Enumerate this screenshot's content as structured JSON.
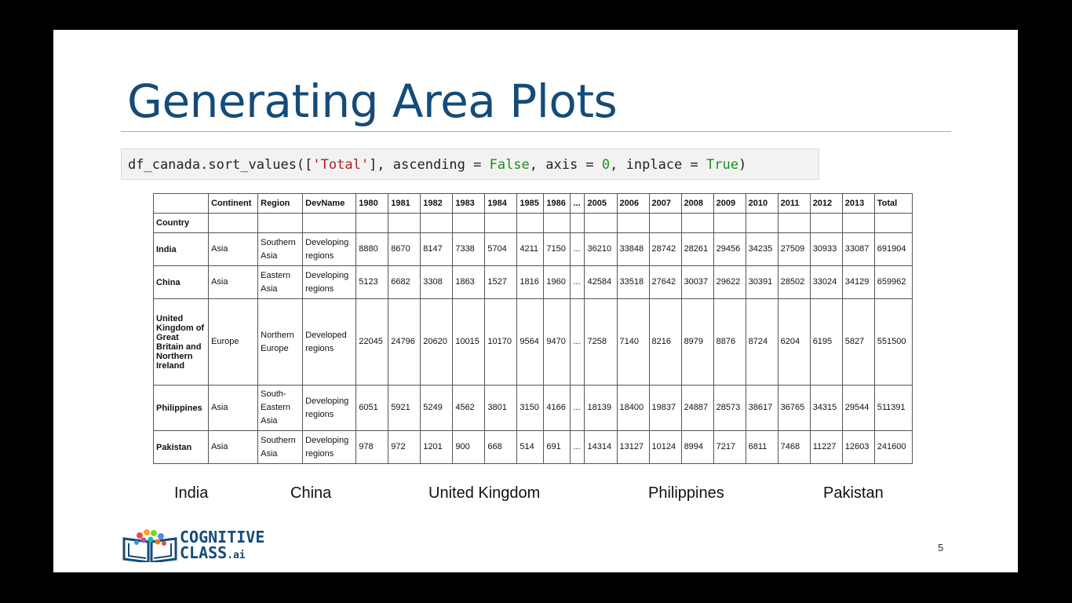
{
  "slide": {
    "title": "Generating Area Plots",
    "code": {
      "pre": "df_canada.sort_values([",
      "str": "'Total'",
      "mid1": "], ascending = ",
      "kw1": "False",
      "mid2": ", axis = ",
      "num": "0",
      "mid3": ", inplace = ",
      "kw2": "True",
      "post": ")"
    },
    "table": {
      "columns": [
        "",
        "Continent",
        "Region",
        "DevName",
        "1980",
        "1981",
        "1982",
        "1983",
        "1984",
        "1985",
        "1986",
        "...",
        "2005",
        "2006",
        "2007",
        "2008",
        "2009",
        "2010",
        "2011",
        "2012",
        "2013",
        "Total"
      ],
      "index_name": "Country",
      "rows": [
        {
          "country": "India",
          "cells": [
            "Asia",
            "Southern Asia",
            "Developing regions",
            "8880",
            "8670",
            "8147",
            "7338",
            "5704",
            "4211",
            "7150",
            "...",
            "36210",
            "33848",
            "28742",
            "28261",
            "29456",
            "34235",
            "27509",
            "30933",
            "33087",
            "691904"
          ]
        },
        {
          "country": "China",
          "cells": [
            "Asia",
            "Eastern Asia",
            "Developing regions",
            "5123",
            "6682",
            "3308",
            "1863",
            "1527",
            "1816",
            "1960",
            "...",
            "42584",
            "33518",
            "27642",
            "30037",
            "29622",
            "30391",
            "28502",
            "33024",
            "34129",
            "659962"
          ]
        },
        {
          "country": "United Kingdom of Great Britain and Northern Ireland",
          "cells": [
            "Europe",
            "Northern Europe",
            "Developed regions",
            "22045",
            "24796",
            "20620",
            "10015",
            "10170",
            "9564",
            "9470",
            "...",
            "7258",
            "7140",
            "8216",
            "8979",
            "8876",
            "8724",
            "6204",
            "6195",
            "5827",
            "551500"
          ]
        },
        {
          "country": "Philippines",
          "cells": [
            "Asia",
            "South-Eastern Asia",
            "Developing regions",
            "6051",
            "5921",
            "5249",
            "4562",
            "3801",
            "3150",
            "4166",
            "...",
            "18139",
            "18400",
            "19837",
            "24887",
            "28573",
            "38617",
            "36765",
            "34315",
            "29544",
            "511391"
          ]
        },
        {
          "country": "Pakistan",
          "cells": [
            "Asia",
            "Southern Asia",
            "Developing regions",
            "978",
            "972",
            "1201",
            "900",
            "668",
            "514",
            "691",
            "...",
            "14314",
            "13127",
            "10124",
            "8994",
            "7217",
            "6811",
            "7468",
            "11227",
            "12603",
            "241600"
          ]
        }
      ]
    },
    "labels": [
      "India",
      "China",
      "United Kingdom",
      "Philippines",
      "Pakistan"
    ],
    "logo": {
      "line1": "COGNITIVE",
      "line2": "CLASS",
      "suffix": ".ai"
    },
    "page_number": "5",
    "colors": {
      "title": "#154b78",
      "string": "#b31d28",
      "keyword": "#1a8f1a"
    }
  }
}
